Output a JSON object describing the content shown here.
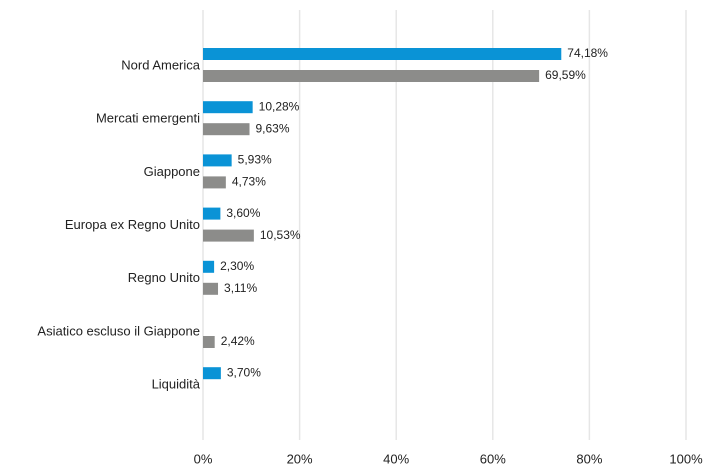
{
  "chart_data": {
    "type": "hbar",
    "categories": [
      "Nord America",
      "Mercati emergenti",
      "Giappone",
      "Europa ex Regno Unito",
      "Regno Unito",
      "Asiatico escluso il Giappone",
      "Liquidità"
    ],
    "series": [
      {
        "color": "#0a93d6",
        "values": [
          74.18,
          10.28,
          5.93,
          3.6,
          2.3,
          null,
          3.7
        ],
        "value_labels": [
          "74,18%",
          "10,28%",
          "5,93%",
          "3,60%",
          "2,30%",
          null,
          "3,70%"
        ]
      },
      {
        "color": "#8c8c8a",
        "values": [
          69.59,
          9.63,
          4.73,
          10.53,
          3.11,
          2.42,
          null
        ],
        "value_labels": [
          "69,59%",
          "9,63%",
          "4,73%",
          "10,53%",
          "3,11%",
          "2,42%",
          null
        ]
      }
    ],
    "xlim": [
      0,
      100
    ],
    "xticks": [
      {
        "value": 0,
        "label": "0%"
      },
      {
        "value": 20,
        "label": "20%"
      },
      {
        "value": 40,
        "label": "40%"
      },
      {
        "value": 60,
        "label": "60%"
      },
      {
        "value": 80,
        "label": "80%"
      },
      {
        "value": 100,
        "label": "100%"
      }
    ],
    "grid": true
  }
}
